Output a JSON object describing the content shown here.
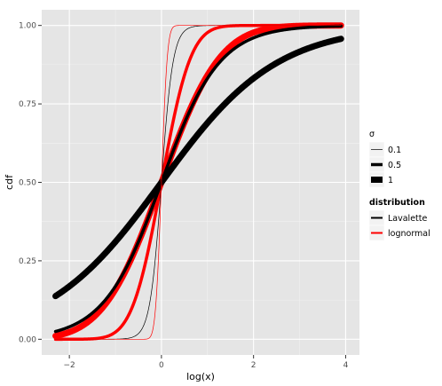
{
  "chart_data": {
    "type": "line",
    "xlabel": "log(x)",
    "ylabel": "cdf",
    "xlim": [
      -2.6,
      4.3
    ],
    "ylim": [
      -0.05,
      1.05
    ],
    "x_ticks": [
      -2,
      0,
      2,
      4
    ],
    "x_tick_labels": [
      "−2",
      "0",
      "2",
      "4"
    ],
    "y_ticks": [
      0,
      0.25,
      0.5,
      0.75,
      1
    ],
    "y_tick_labels": [
      "0.00",
      "0.25",
      "0.50",
      "0.75",
      "1.00"
    ],
    "x_range_of_curves": [
      -2.3,
      3.9
    ],
    "grid": true,
    "legend_placement": "right",
    "legends": [
      {
        "title": "σ",
        "title_style": "normal",
        "items": [
          {
            "label": "0.1",
            "line_width": 0.7
          },
          {
            "label": "0.5",
            "line_width": 3.5
          },
          {
            "label": "1",
            "line_width": 7
          }
        ]
      },
      {
        "title": "distribution",
        "title_style": "bold",
        "items": [
          {
            "label": "Lavalette",
            "color": "#000000"
          },
          {
            "label": "lognormal",
            "color": "#ff0000"
          }
        ]
      }
    ],
    "series": [
      {
        "distribution": "lognormal",
        "sigma": 1,
        "color": "#ff0000",
        "line_width": 7
      },
      {
        "distribution": "Lavalette",
        "sigma": 1,
        "color": "#000000",
        "line_width": 7
      },
      {
        "distribution": "lognormal",
        "sigma": 0.5,
        "color": "#ff0000",
        "line_width": 3.5
      },
      {
        "distribution": "Lavalette",
        "sigma": 0.5,
        "color": "#000000",
        "line_width": 3.5
      },
      {
        "distribution": "Lavalette",
        "sigma": 0.1,
        "color": "#000000",
        "line_width": 0.7
      },
      {
        "distribution": "lognormal",
        "sigma": 0.1,
        "color": "#ff0000",
        "line_width": 0.7
      }
    ],
    "colors": {
      "panel_background": "#e5e5e5",
      "grid_major": "#ffffff",
      "grid_minor": "#f2f2f2",
      "legend_key_background": "#f2f2f2"
    }
  }
}
